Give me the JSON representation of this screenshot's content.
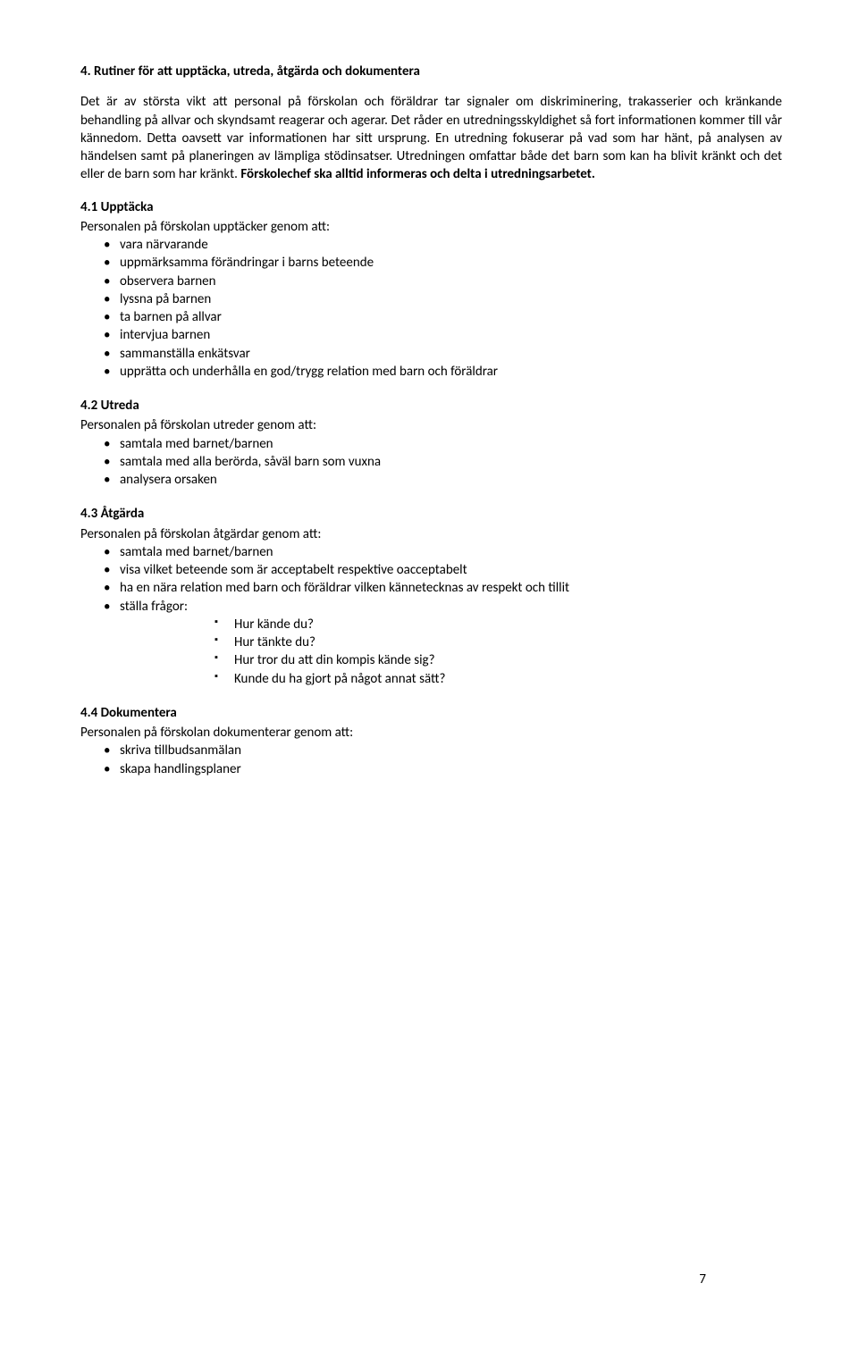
{
  "heading": "4. Rutiner för att upptäcka, utreda, åtgärda och dokumentera",
  "intro_part1": "Det är av största vikt att personal på förskolan och föräldrar tar signaler om diskriminering, trakasserier och kränkande behandling på allvar och skyndsamt reagerar och agerar. Det råder en utredningsskyldighet så fort informationen kommer till vår kännedom. Detta oavsett var informationen har sitt ursprung. En utredning fokuserar på vad som har hänt, på analysen av händelsen samt på planeringen av lämpliga stödinsatser. Utredningen omfattar både det barn som kan ha blivit kränkt och det eller de barn som har kränkt. ",
  "intro_bold": "Förskolechef ska alltid informeras och delta i utredningsarbetet.",
  "s41": {
    "title": "4.1 Upptäcka",
    "lead": "Personalen på förskolan upptäcker genom att:",
    "items": [
      "vara närvarande",
      "uppmärksamma förändringar i barns beteende",
      "observera barnen",
      "lyssna på barnen",
      "ta barnen på allvar",
      "intervjua barnen",
      "sammanställa enkätsvar",
      "upprätta och underhålla en god/trygg relation med barn och föräldrar"
    ]
  },
  "s42": {
    "title": "4.2 Utreda",
    "lead": "Personalen på  förskolan utreder genom att:",
    "items": [
      "samtala med barnet/barnen",
      "samtala med alla berörda, såväl barn som vuxna",
      "analysera orsaken"
    ]
  },
  "s43": {
    "title": "4.3 Åtgärda",
    "lead": "Personalen på  förskolan åtgärdar genom att:",
    "items": [
      "samtala med barnet/barnen",
      "visa vilket beteende som är acceptabelt respektive oacceptabelt",
      "ha en nära relation med barn och föräldrar vilken kännetecknas av respekt och tillit",
      "ställa frågor:"
    ],
    "subitems": [
      "Hur kände du?",
      "Hur tänkte du?",
      "Hur tror du att din kompis kände sig?",
      "Kunde du ha gjort på något annat sätt?"
    ]
  },
  "s44": {
    "title": "4.4 Dokumentera",
    "lead": "Personalen på  förskolan dokumenterar genom att:",
    "items": [
      "skriva tillbudsanmälan",
      "skapa handlingsplaner"
    ]
  },
  "page_number": "7"
}
